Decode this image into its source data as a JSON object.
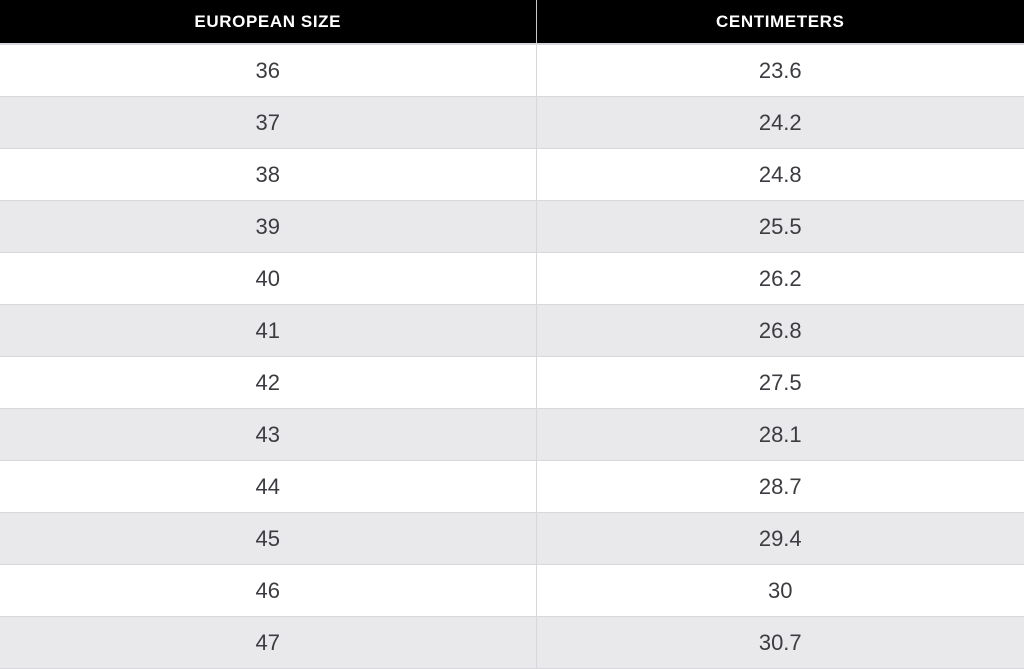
{
  "chart_data": {
    "type": "table",
    "columns": [
      "EUROPEAN SIZE",
      "CENTIMETERS"
    ],
    "rows": [
      [
        "36",
        "23.6"
      ],
      [
        "37",
        "24.2"
      ],
      [
        "38",
        "24.8"
      ],
      [
        "39",
        "25.5"
      ],
      [
        "40",
        "26.2"
      ],
      [
        "41",
        "26.8"
      ],
      [
        "42",
        "27.5"
      ],
      [
        "43",
        "28.1"
      ],
      [
        "44",
        "28.7"
      ],
      [
        "45",
        "29.4"
      ],
      [
        "46",
        "30"
      ],
      [
        "47",
        "30.7"
      ]
    ],
    "layout": {
      "header_position": "top",
      "row_striping": "alternating white and light gray, starting white",
      "last_row_clipped": true
    }
  },
  "colors": {
    "header_bg": "#000000",
    "header_text": "#ffffff",
    "row_bg": "#ffffff",
    "row_alt_bg": "#e9e8eb",
    "border": "#d8d7db",
    "header_divider": "#c9c8cc",
    "cell_text": "#3c3b41"
  }
}
